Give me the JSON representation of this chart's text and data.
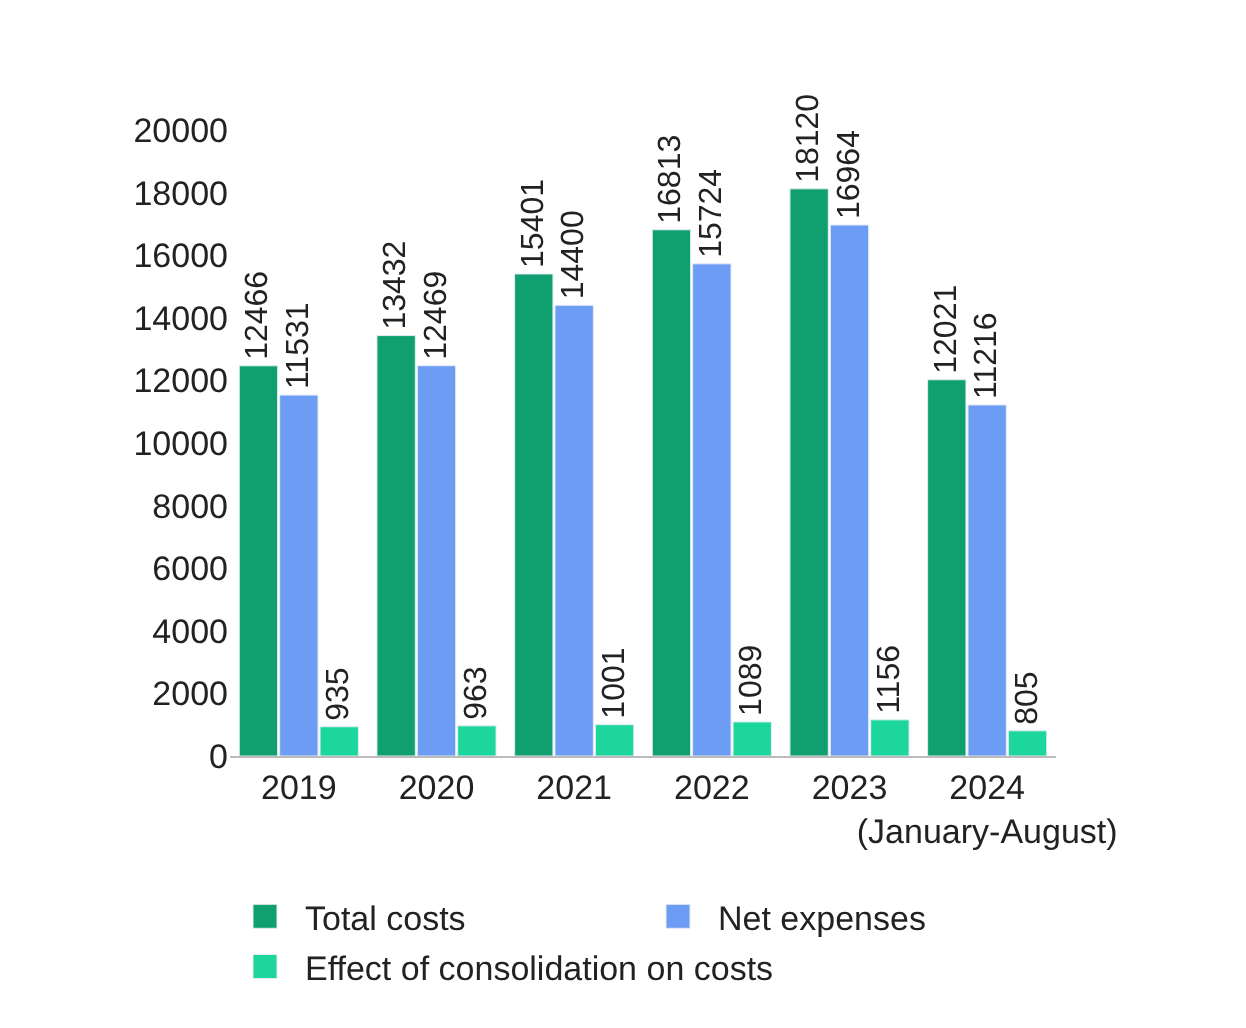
{
  "chart_data": {
    "type": "bar",
    "categories": [
      "2019",
      "2020",
      "2021",
      "2022",
      "2023",
      "2024 (January-August)"
    ],
    "series": [
      {
        "name": "Total costs",
        "color": "#10a070",
        "values": [
          12466,
          13432,
          15401,
          16813,
          18120,
          12021
        ]
      },
      {
        "name": "Net expenses",
        "color": "#6d9cf4",
        "values": [
          11531,
          12469,
          14400,
          15724,
          16964,
          11216
        ]
      },
      {
        "name": "Effect of consolidation on costs",
        "color": "#1dd69c",
        "values": [
          935,
          963,
          1001,
          1089,
          1156,
          805
        ]
      }
    ],
    "ylim": [
      0,
      20000
    ],
    "yticks": [
      0,
      2000,
      4000,
      6000,
      8000,
      10000,
      12000,
      14000,
      16000,
      18000,
      20000
    ],
    "legend": "bottom",
    "data_labels": true
  }
}
